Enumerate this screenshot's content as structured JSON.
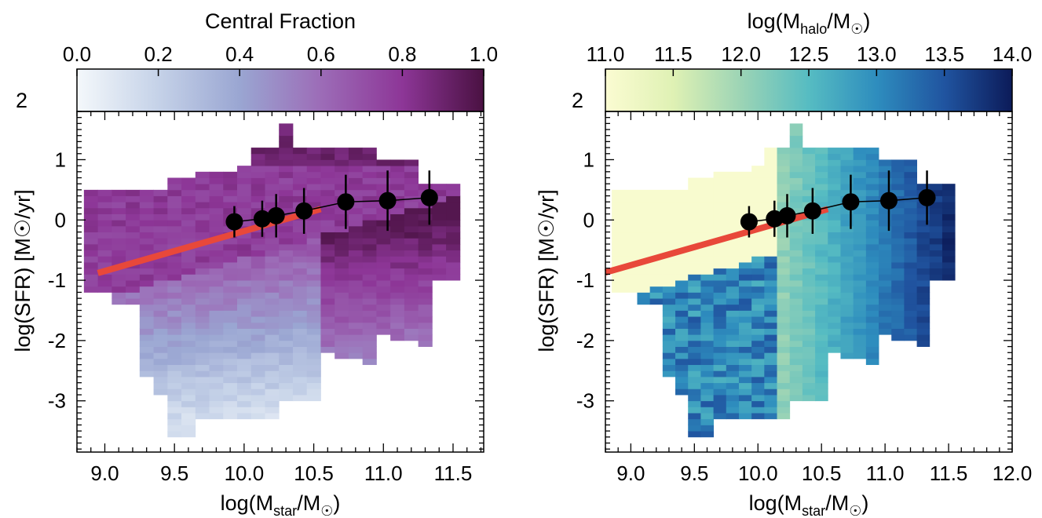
{
  "chart_data": [
    {
      "type": "heatmap",
      "colorbar": {
        "title": "Central Fraction",
        "ticks": [
          "0.0",
          "0.2",
          "0.4",
          "0.6",
          "0.8",
          "1.0"
        ],
        "range": [
          0.0,
          1.0
        ],
        "colors": [
          "#f4f8fb",
          "#c5d2e8",
          "#9aa6d2",
          "#9c6cb7",
          "#8d3697",
          "#4a1142"
        ]
      },
      "xlabel_main": "log(M",
      "xlabel_sub": "star",
      "xlabel_tail": "/M",
      "xlabel_sun": "☉",
      "xlabel_close": ")",
      "ylabel": "log(SFR) [M☉/yr]",
      "xlim": [
        8.8,
        11.72
      ],
      "ylim": [
        -3.85,
        1.8
      ],
      "x_ticks": [
        "9.0",
        "9.5",
        "10.0",
        "10.5",
        "11.0",
        "11.5"
      ],
      "y_ticks": [
        "-3",
        "-2",
        "-1",
        "0",
        "1"
      ],
      "y_hidden_tick": "2",
      "grid": false,
      "heatmap": {
        "x0": 8.85,
        "dx": 0.1,
        "y0": -3.7,
        "dy": 0.1,
        "note": "cells computed from rules below"
      },
      "median_points": {
        "x": [
          9.93,
          10.13,
          10.23,
          10.43,
          10.73,
          11.03,
          11.33
        ],
        "y": [
          -0.03,
          0.02,
          0.07,
          0.15,
          0.3,
          0.32,
          0.37
        ],
        "yerr": [
          0.26,
          0.3,
          0.36,
          0.38,
          0.45,
          0.5,
          0.45
        ]
      },
      "reference_line": {
        "x": [
          8.95,
          10.55
        ],
        "y": [
          -0.88,
          0.18
        ],
        "color": "#e8483a"
      }
    },
    {
      "type": "heatmap",
      "colorbar": {
        "title_main": "log(M",
        "title_sub": "halo",
        "title_tail": "/M",
        "title_sun": "☉",
        "title_close": ")",
        "ticks": [
          "11.0",
          "11.5",
          "12.0",
          "12.5",
          "13.0",
          "13.5",
          "14.0"
        ],
        "range": [
          11.0,
          14.0
        ],
        "colors": [
          "#fbfcd2",
          "#dff1b4",
          "#9cd4b5",
          "#56bcc2",
          "#2e8dbe",
          "#2054a0",
          "#0c1b59"
        ]
      },
      "xlabel_main": "log(M",
      "xlabel_sub": "star",
      "xlabel_tail": "/M",
      "xlabel_sun": "☉",
      "xlabel_close": ")",
      "ylabel": "log(SFR) [M☉/yr]",
      "xlim": [
        8.8,
        12.0
      ],
      "ylim": [
        -3.85,
        1.8
      ],
      "x_ticks": [
        "9.0",
        "9.5",
        "10.0",
        "10.5",
        "11.0",
        "11.5",
        "12.0"
      ],
      "y_ticks": [
        "-3",
        "-2",
        "-1",
        "0",
        "1"
      ],
      "y_hidden_tick": "2",
      "grid": false,
      "median_points": {
        "x": [
          9.93,
          10.13,
          10.23,
          10.43,
          10.73,
          11.03,
          11.33
        ],
        "y": [
          -0.03,
          0.02,
          0.07,
          0.15,
          0.3,
          0.32,
          0.37
        ],
        "yerr": [
          0.26,
          0.3,
          0.36,
          0.38,
          0.45,
          0.5,
          0.45
        ]
      },
      "reference_line": {
        "x": [
          8.8,
          10.55
        ],
        "y": [
          -0.87,
          0.18
        ],
        "color": "#e8483a"
      }
    }
  ]
}
